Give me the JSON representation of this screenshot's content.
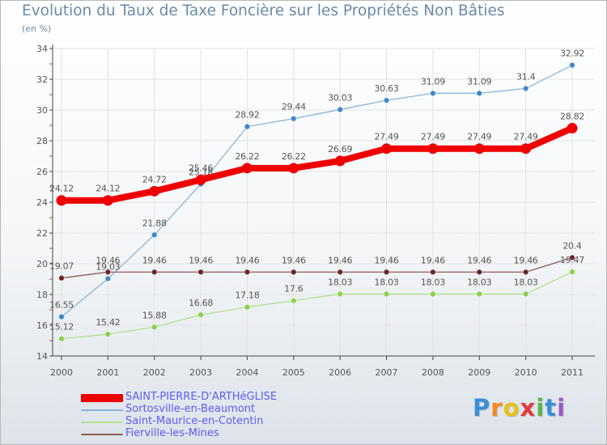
{
  "colors": {
    "title": "#6a8aa8",
    "axis": "#444444",
    "tick_minor": "#cc4444",
    "grid": "#e3e3e3",
    "label_text": "#555555",
    "legend_text": "#5c5cf0"
  },
  "chart_data": {
    "type": "line",
    "title": "Evolution du Taux de Taxe Foncière sur les Propriétés Non Bâties",
    "ylabel": "(en %)",
    "xlabel": "",
    "x": [
      "2000",
      "2001",
      "2002",
      "2003",
      "2004",
      "2005",
      "2006",
      "2007",
      "2008",
      "2009",
      "2010",
      "2011"
    ],
    "ylim": [
      14,
      34
    ],
    "yticks": [
      "14",
      "16",
      "18",
      "20",
      "22",
      "24",
      "26",
      "28",
      "30",
      "32",
      "34"
    ],
    "series": [
      {
        "name": "Sortosville-en-Beaumont",
        "color": "#8ab4d8",
        "marker": "#3f88c8",
        "width": 1.3,
        "values": [
          16.55,
          19.03,
          21.88,
          25.18,
          28.92,
          29.44,
          30.03,
          30.63,
          31.09,
          31.09,
          31.4,
          32.92
        ],
        "labels": [
          "16.55",
          "19.03",
          "21.88",
          "25.18",
          "28.92",
          "29.44",
          "30.03",
          "30.63",
          "31.09",
          "31.09",
          "31.4",
          "32.92"
        ]
      },
      {
        "name": "Saint-Maurice-en-Cotentin",
        "color": "#b4e090",
        "marker": "#8ad04a",
        "width": 1.3,
        "values": [
          15.12,
          15.42,
          15.88,
          16.68,
          17.18,
          17.6,
          18.03,
          18.03,
          18.03,
          18.03,
          18.03,
          19.47
        ],
        "labels": [
          "15.12",
          "15.42",
          "15.88",
          "16.68",
          "17.18",
          "17.6",
          "18.03",
          "18.03",
          "18.03",
          "18.03",
          "18.03",
          "19.47"
        ]
      },
      {
        "name": "Fierville-les-Mines",
        "color": "#8e5a5a",
        "marker": "#6e2424",
        "width": 1.3,
        "values": [
          19.07,
          19.46,
          19.46,
          19.46,
          19.46,
          19.46,
          19.46,
          19.46,
          19.46,
          19.46,
          19.46,
          20.4
        ],
        "labels": [
          "19.07",
          "19.46",
          "19.46",
          "19.46",
          "19.46",
          "19.46",
          "19.46",
          "19.46",
          "19.46",
          "19.46",
          "19.46",
          "20.4"
        ]
      },
      {
        "name": "SAINT-PIERRE-D'ARTHéGLISE",
        "color": "#ee0000",
        "marker": "#ee0000",
        "width": 8,
        "values": [
          24.12,
          24.12,
          24.72,
          25.46,
          26.22,
          26.22,
          26.69,
          27.49,
          27.49,
          27.49,
          27.49,
          28.82
        ],
        "labels": [
          "24.12",
          "24.12",
          "24.72",
          "25.46",
          "26.22",
          "26.22",
          "26.69",
          "27.49",
          "27.49",
          "27.49",
          "27.49",
          "28.82"
        ]
      }
    ],
    "legend": [
      {
        "name": "SAINT-PIERRE-D'ARTHéGLISE",
        "color": "#ee0000",
        "thick": true
      },
      {
        "name": "Sortosville-en-Beaumont",
        "color": "#8ab4d8",
        "thick": false
      },
      {
        "name": "Saint-Maurice-en-Cotentin",
        "color": "#b4e090",
        "thick": false
      },
      {
        "name": "Fierville-les-Mines",
        "color": "#8e5a5a",
        "thick": false
      }
    ]
  },
  "logo": {
    "letters": [
      "P",
      "r",
      "o",
      "x",
      "i",
      "t",
      "i"
    ],
    "colors": [
      "#3b8fd6",
      "#f28a1e",
      "#e9c21a",
      "#e23b3b",
      "#5ab54a",
      "#3b8fd6",
      "#9b59c6"
    ]
  }
}
